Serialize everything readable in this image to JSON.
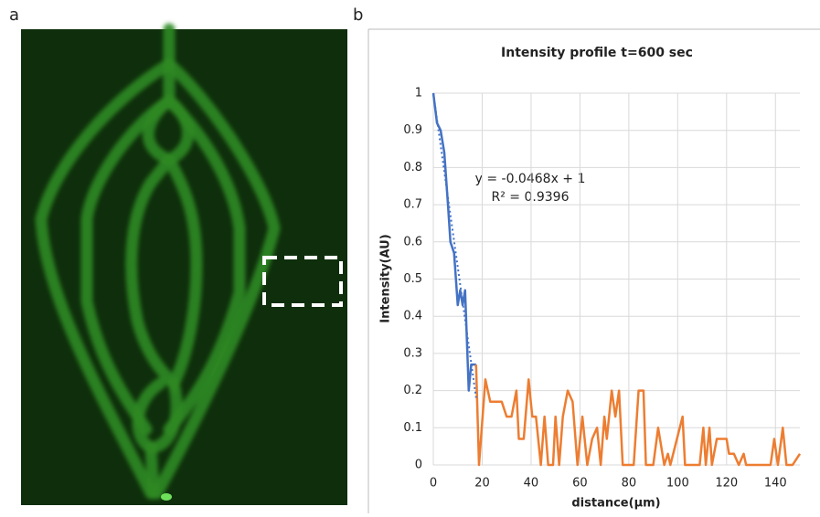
{
  "panel_labels": [
    "a",
    "b"
  ],
  "chart_data": {
    "type": "line",
    "title": "Intensity profile t=600 sec",
    "xlabel": "distance(µm)",
    "ylabel": "Intensity(AU)",
    "xlim": [
      0,
      150
    ],
    "xticks": [
      0,
      20,
      40,
      60,
      80,
      100,
      120,
      140
    ],
    "ylim": [
      0,
      1
    ],
    "yticks": [
      0,
      0.1,
      0.2,
      0.3,
      0.4,
      0.5,
      0.6,
      0.7,
      0.8,
      0.9,
      1
    ],
    "grid": true,
    "series": [
      {
        "color": "#4472c4",
        "x": [
          0,
          1.5,
          3,
          4.5,
          6,
          7,
          8.5,
          10,
          11,
          12,
          13,
          14.5,
          15.5,
          17.5
        ],
        "values": [
          1,
          0.92,
          0.9,
          0.84,
          0.7,
          0.6,
          0.57,
          0.43,
          0.47,
          0.43,
          0.47,
          0.2,
          0.27,
          0.27
        ]
      },
      {
        "color": "#ed7d31",
        "x": [
          17.5,
          18.7,
          21.3,
          23.3,
          28,
          30,
          32,
          34,
          35,
          37,
          39,
          40.5,
          42,
          44,
          45.5,
          47,
          49,
          50,
          51.5,
          53,
          55,
          57,
          59,
          61,
          63,
          65,
          67,
          68.5,
          70,
          71,
          73,
          74.5,
          76,
          77.5,
          82,
          84,
          86,
          87,
          90,
          92,
          94.5,
          96,
          97,
          102,
          103,
          109,
          110.5,
          111.5,
          113,
          114,
          116,
          120,
          121,
          123,
          125,
          127,
          128,
          138,
          139.5,
          141,
          143,
          144.5,
          147,
          150
        ],
        "values": [
          0.27,
          0,
          0.23,
          0.17,
          0.17,
          0.13,
          0.13,
          0.2,
          0.07,
          0.07,
          0.23,
          0.13,
          0.13,
          0,
          0.13,
          0,
          0,
          0.13,
          0,
          0.13,
          0.2,
          0.17,
          0,
          0.13,
          0,
          0.07,
          0.1,
          0,
          0.13,
          0.07,
          0.2,
          0.13,
          0.2,
          0,
          0,
          0.2,
          0.2,
          0,
          0,
          0.1,
          0,
          0.03,
          0,
          0.13,
          0,
          0,
          0.1,
          0,
          0.1,
          0,
          0.07,
          0.07,
          0.03,
          0.03,
          0,
          0.03,
          0,
          0,
          0.07,
          0,
          0.1,
          0,
          0,
          0.03
        ]
      }
    ],
    "trendline": {
      "slope": -0.0468,
      "intercept": 1,
      "label": "y = -0.0468x + 1",
      "r2_label": "R² = 0.9396"
    }
  }
}
